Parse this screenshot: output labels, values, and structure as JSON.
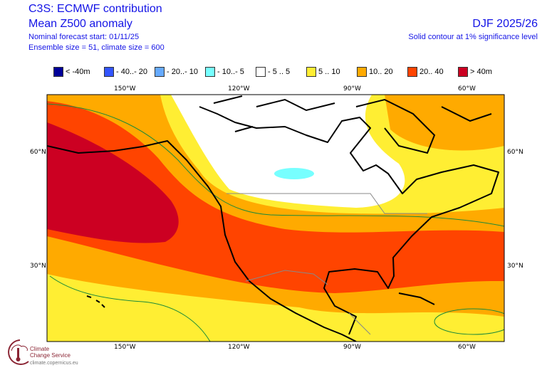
{
  "header": {
    "title": "C3S: ECMWF contribution",
    "subtitle": "Mean Z500 anomaly",
    "forecast_start": "Nominal forecast start: 01/11/25",
    "ensemble": "Ensemble size = 51, climate size = 600",
    "season": "DJF 2025/26",
    "significance": "Solid contour at 1% significance level"
  },
  "legend": [
    {
      "label": "< -40m",
      "color": "#000099"
    },
    {
      "label": "- 40..- 20",
      "color": "#3355ff"
    },
    {
      "label": "- 20..- 10",
      "color": "#66aaff"
    },
    {
      "label": "- 10..- 5",
      "color": "#77ffff"
    },
    {
      "label": "- 5 .. 5",
      "color": "#ffffff"
    },
    {
      "label": "5 .. 10",
      "color": "#ffee33"
    },
    {
      "label": "10.. 20",
      "color": "#ffaa00"
    },
    {
      "label": "20.. 40",
      "color": "#ff4400"
    },
    {
      "label": ">  40m",
      "color": "#cc0022"
    }
  ],
  "axes": {
    "lon_ticks": [
      "150°W",
      "120°W",
      "90°W",
      "60°W"
    ],
    "lat_ticks": [
      "60°N",
      "30°N"
    ]
  },
  "logo": {
    "line1": "Climate",
    "line2": "Change Service",
    "url": "climate.copernicus.eu"
  }
}
